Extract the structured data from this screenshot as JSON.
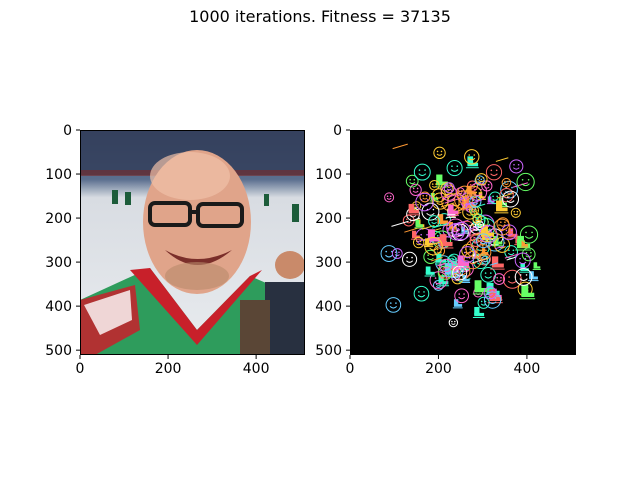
{
  "figure": {
    "title": "1000 iterations. Fitness = 37135"
  },
  "colors": {
    "background": "#ffffff",
    "axes_frame": "#000000",
    "render_background": "#000000",
    "shape_palette": [
      "#ff66cc",
      "#66ff66",
      "#66ccff",
      "#ffcc33",
      "#cc66ff",
      "#33ffcc",
      "#ff6666",
      "#ffffff",
      "#ff9933"
    ]
  },
  "chart_data": [
    {
      "type": "image",
      "name": "target photo",
      "content": "photo of a smiling man with glasses in a green and red hockey jersey at an ice arena",
      "x_ticks": [
        0,
        200,
        400
      ],
      "y_ticks": [
        0,
        100,
        200,
        300,
        400,
        500
      ],
      "xlim": [
        0,
        511
      ],
      "ylim": [
        511,
        0
      ],
      "grid": false
    },
    {
      "type": "image",
      "name": "evolved rendering",
      "content": "many small colored outline smiley faces, skate and ice-skate icons on a black background",
      "x_ticks": [
        0,
        200,
        400
      ],
      "y_ticks": [
        0,
        100,
        200,
        300,
        400,
        500
      ],
      "xlim": [
        0,
        511
      ],
      "ylim": [
        511,
        0
      ],
      "grid": false
    }
  ]
}
